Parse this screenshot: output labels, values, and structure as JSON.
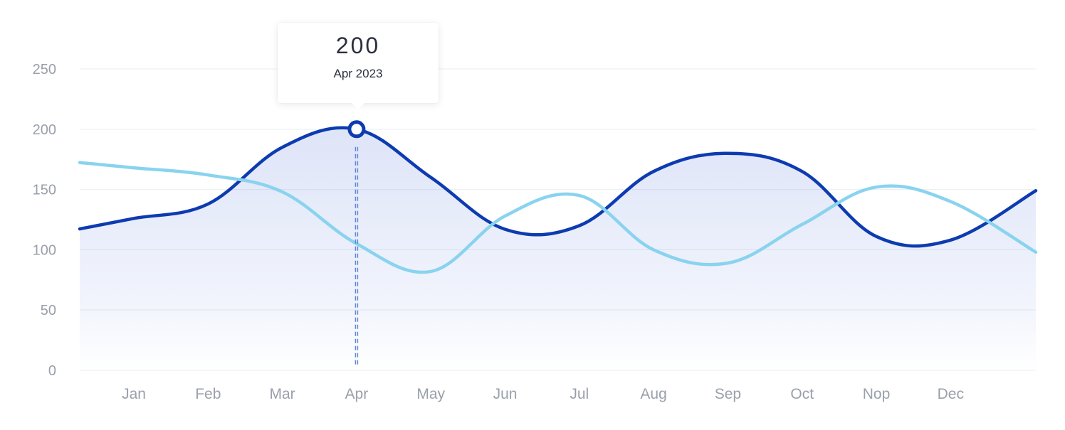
{
  "chart_data": {
    "type": "line",
    "x": [
      "Jan",
      "Feb",
      "Mar",
      "Apr",
      "May",
      "Jun",
      "Jul",
      "Aug",
      "Sep",
      "Oct",
      "Nop",
      "Dec"
    ],
    "y_ticks": [
      "0",
      "50",
      "100",
      "150",
      "200",
      "250"
    ],
    "ylim": [
      0,
      250
    ],
    "grid": true,
    "series": [
      {
        "color": "#0d3bb0",
        "area_fill": true,
        "values": [
          126,
          138,
          185,
          200,
          160,
          117,
          120,
          165,
          180,
          165,
          111,
          108
        ],
        "end_value": 149
      },
      {
        "color": "#89d3ef",
        "area_fill": false,
        "values": [
          168,
          162,
          148,
          105,
          82,
          128,
          145,
          100,
          89,
          121,
          152,
          140
        ],
        "end_value": 98
      }
    ],
    "tooltip": {
      "value": "200",
      "label": "Apr 2023",
      "category": "Apr",
      "series_index": 0
    }
  }
}
